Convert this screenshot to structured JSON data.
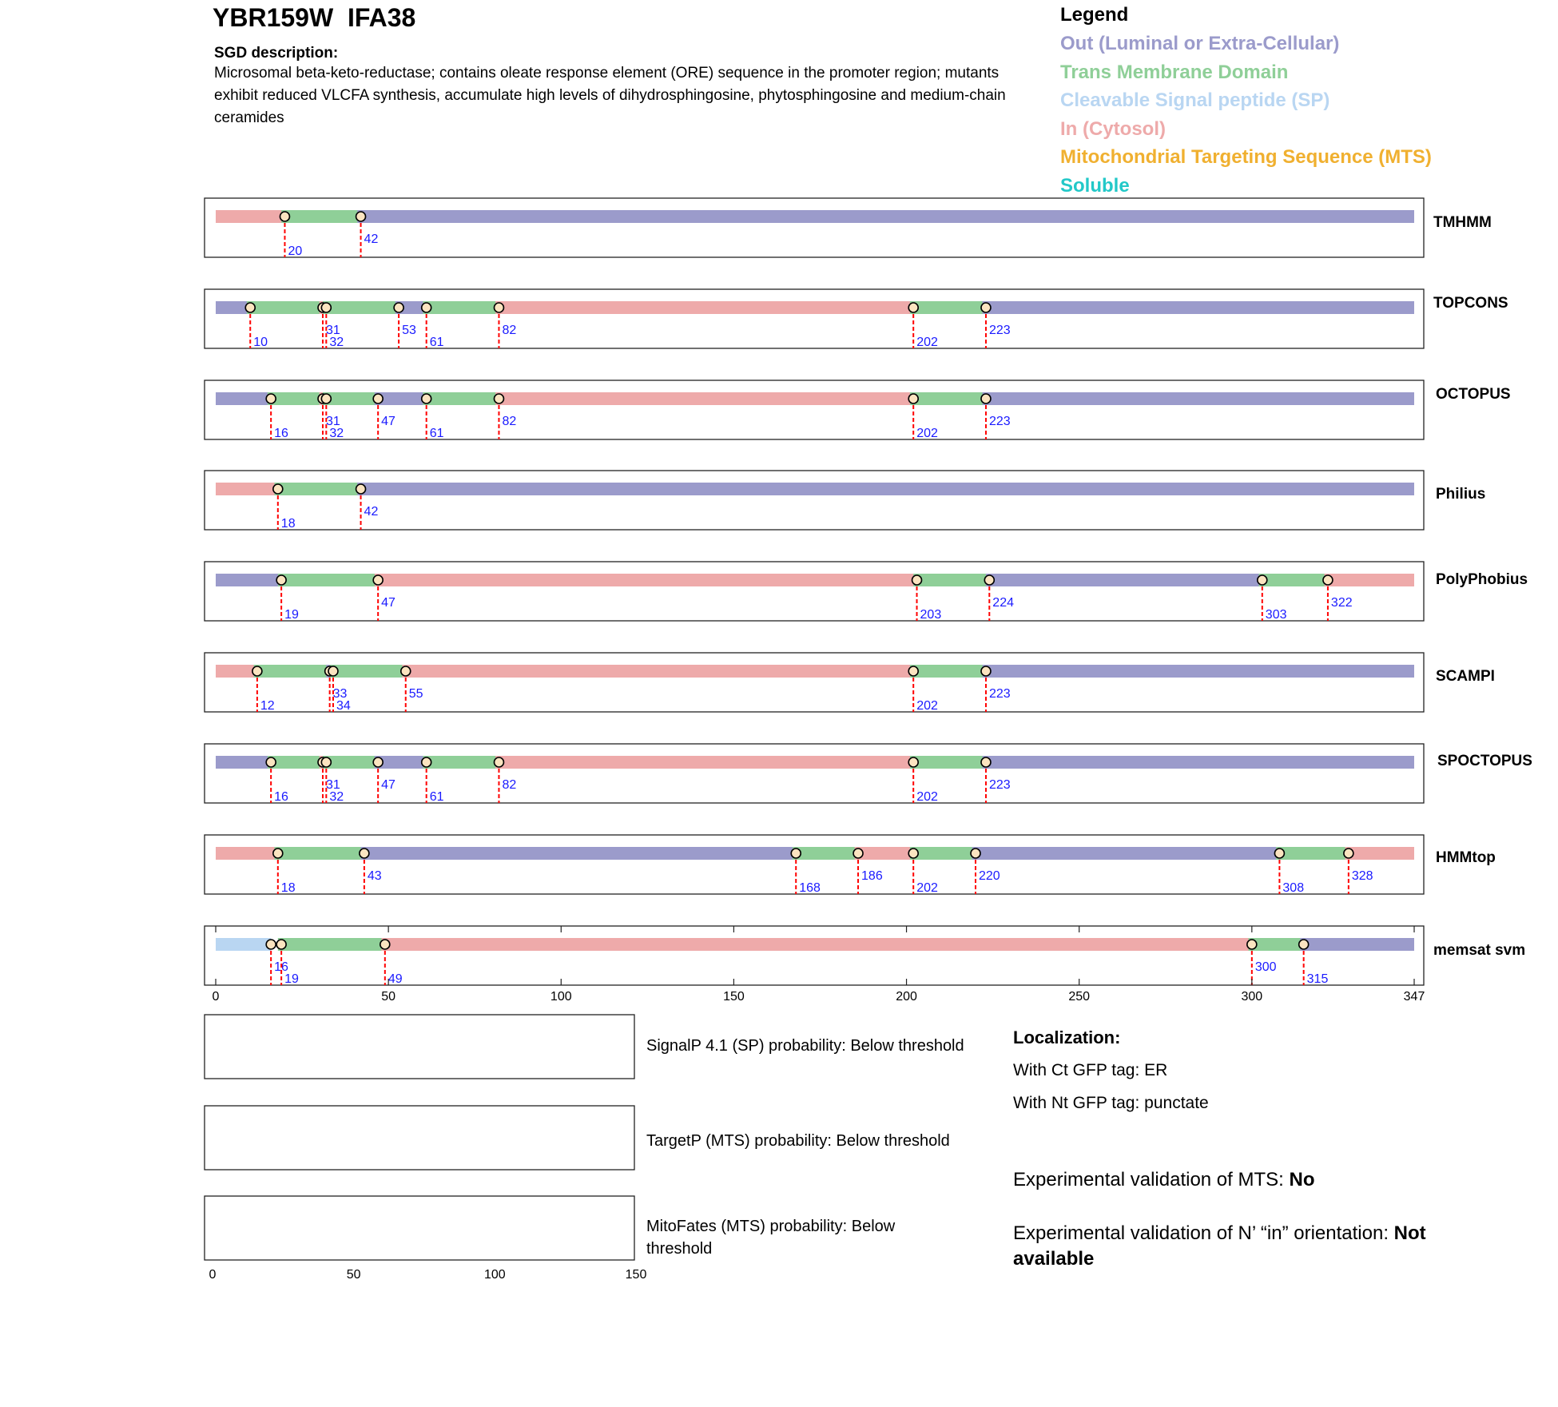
{
  "header": {
    "title": "YBR159W  IFA38",
    "sgd_heading": "SGD description:",
    "sgd_text": "Microsomal beta-keto-reductase; contains oleate response element (ORE) sequence in the promoter region; mutants exhibit reduced VLCFA synthesis, accumulate high levels of dihydrosphingosine, phytosphingosine and medium-chain ceramides"
  },
  "legend": {
    "title": "Legend",
    "items": [
      {
        "label": "Out (Luminal or Extra-Cellular)",
        "color": "#9b9bcb"
      },
      {
        "label": "Trans Membrane Domain",
        "color": "#8fcf98"
      },
      {
        "label": "Cleavable Signal peptide (SP)",
        "color": "#b9d6f2"
      },
      {
        "label": "In (Cytosol)",
        "color": "#eeaaaa"
      },
      {
        "label": "Mitochondrial Targeting Sequence (MTS)",
        "color": "#f0b030"
      },
      {
        "label": "Soluble",
        "color": "#22c8c8"
      }
    ]
  },
  "chart_data": {
    "type": "topology",
    "protein_length": 347,
    "colors": {
      "out": "#9b9bcb",
      "tm": "#8fcf98",
      "sp": "#b9d6f2",
      "in": "#eeaaaa"
    },
    "xaxis": {
      "ticks": [
        0,
        50,
        100,
        150,
        200,
        250,
        300
      ],
      "end_label": 347
    },
    "tracks": [
      {
        "name": "TMHMM",
        "segments": [
          [
            "in",
            1,
            20
          ],
          [
            "tm",
            20,
            42
          ],
          [
            "out",
            42,
            347
          ]
        ],
        "boundaries": [
          20,
          42
        ]
      },
      {
        "name": "TOPCONS",
        "segments": [
          [
            "out",
            1,
            10
          ],
          [
            "tm",
            10,
            31
          ],
          [
            "in",
            31,
            32
          ],
          [
            "tm",
            32,
            53
          ],
          [
            "out",
            53,
            61
          ],
          [
            "tm",
            61,
            82
          ],
          [
            "in",
            82,
            202
          ],
          [
            "tm",
            202,
            223
          ],
          [
            "out",
            223,
            347
          ]
        ],
        "boundaries": [
          10,
          31,
          32,
          53,
          61,
          82,
          202,
          223
        ]
      },
      {
        "name": "OCTOPUS",
        "segments": [
          [
            "out",
            1,
            16
          ],
          [
            "tm",
            16,
            31
          ],
          [
            "in",
            31,
            32
          ],
          [
            "tm",
            32,
            47
          ],
          [
            "out",
            47,
            61
          ],
          [
            "tm",
            61,
            82
          ],
          [
            "in",
            82,
            202
          ],
          [
            "tm",
            202,
            223
          ],
          [
            "out",
            223,
            347
          ]
        ],
        "boundaries": [
          16,
          31,
          32,
          47,
          61,
          82,
          202,
          223
        ]
      },
      {
        "name": "Philius",
        "segments": [
          [
            "in",
            1,
            18
          ],
          [
            "tm",
            18,
            42
          ],
          [
            "out",
            42,
            347
          ]
        ],
        "boundaries": [
          18,
          42
        ]
      },
      {
        "name": "PolyPhobius",
        "segments": [
          [
            "out",
            1,
            19
          ],
          [
            "tm",
            19,
            47
          ],
          [
            "in",
            47,
            203
          ],
          [
            "tm",
            203,
            224
          ],
          [
            "out",
            224,
            303
          ],
          [
            "tm",
            303,
            322
          ],
          [
            "in",
            322,
            347
          ]
        ],
        "boundaries": [
          19,
          47,
          203,
          224,
          303,
          322
        ]
      },
      {
        "name": "SCAMPI",
        "segments": [
          [
            "in",
            1,
            12
          ],
          [
            "tm",
            12,
            33
          ],
          [
            "out",
            33,
            34
          ],
          [
            "tm",
            34,
            55
          ],
          [
            "in",
            55,
            202
          ],
          [
            "tm",
            202,
            223
          ],
          [
            "out",
            223,
            347
          ]
        ],
        "boundaries": [
          12,
          33,
          34,
          55,
          202,
          223
        ]
      },
      {
        "name": "SPOCTOPUS",
        "segments": [
          [
            "out",
            1,
            16
          ],
          [
            "tm",
            16,
            31
          ],
          [
            "in",
            31,
            32
          ],
          [
            "tm",
            32,
            47
          ],
          [
            "out",
            47,
            61
          ],
          [
            "tm",
            61,
            82
          ],
          [
            "in",
            82,
            202
          ],
          [
            "tm",
            202,
            223
          ],
          [
            "out",
            223,
            347
          ]
        ],
        "boundaries": [
          16,
          31,
          32,
          47,
          61,
          82,
          202,
          223
        ]
      },
      {
        "name": "HMMtop",
        "segments": [
          [
            "in",
            1,
            18
          ],
          [
            "tm",
            18,
            43
          ],
          [
            "out",
            43,
            168
          ],
          [
            "tm",
            168,
            186
          ],
          [
            "in",
            186,
            202
          ],
          [
            "tm",
            202,
            220
          ],
          [
            "out",
            220,
            308
          ],
          [
            "tm",
            308,
            328
          ],
          [
            "in",
            328,
            347
          ]
        ],
        "boundaries": [
          18,
          43,
          168,
          186,
          202,
          220,
          308,
          328
        ]
      },
      {
        "name": "memsat svm",
        "segments": [
          [
            "sp",
            1,
            16
          ],
          [
            "tm",
            19,
            49
          ],
          [
            "in",
            49,
            300
          ],
          [
            "tm",
            300,
            315
          ],
          [
            "out",
            315,
            347
          ]
        ],
        "boundaries": [
          16,
          19,
          49,
          300,
          315
        ]
      }
    ],
    "probability_axis": {
      "ticks": [
        0,
        50,
        100,
        150
      ]
    }
  },
  "probabilities": [
    {
      "label": "SignalP 4.1 (SP) probability: Below threshold"
    },
    {
      "label": "TargetP (MTS) probability: Below threshold"
    },
    {
      "label": "MitoFates (MTS) probability: Below threshold"
    }
  ],
  "localization": {
    "heading": "Localization:",
    "ct": "With Ct GFP tag: ER",
    "nt": "With Nt GFP tag: punctate"
  },
  "validation": {
    "mts_prefix": "Experimental validation of MTS: ",
    "mts_value": "No",
    "orientation_prefix": "Experimental validation of N’ “in” orientation: ",
    "orientation_value": "Not available"
  }
}
